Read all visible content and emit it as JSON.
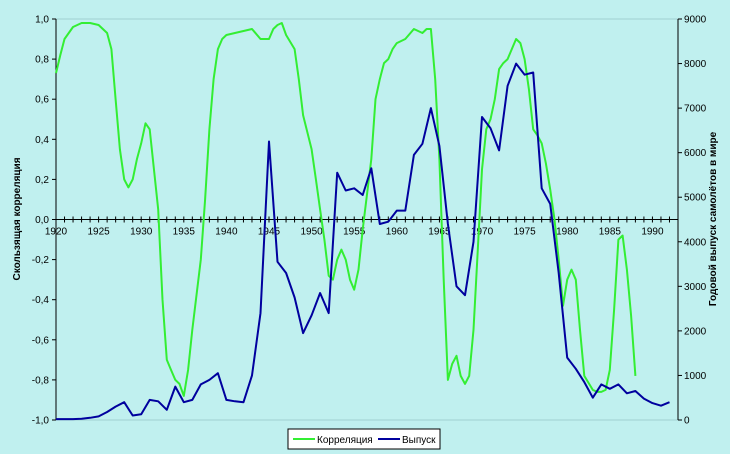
{
  "chart_data": {
    "type": "line",
    "title": "",
    "ylabel_left": "Скользящая корреляция",
    "ylabel_right": "Годовой выпуск самолётов в мире",
    "xlim": [
      1920,
      1993
    ],
    "ylim_left": [
      -1.0,
      1.0
    ],
    "ylim_right": [
      0,
      9000
    ],
    "x_ticks": [
      "1920",
      "1925",
      "1930",
      "1935",
      "1940",
      "1945",
      "1950",
      "1955",
      "1960",
      "1965",
      "1970",
      "1975",
      "1980",
      "1985",
      "1990"
    ],
    "left_ticks": [
      "1,0",
      "0,8",
      "0,6",
      "0,4",
      "0,2",
      "0,0",
      "-0,2",
      "-0,4",
      "-0,6",
      "-0,8",
      "-1,0"
    ],
    "right_ticks": [
      "9000",
      "8000",
      "7000",
      "6000",
      "5000",
      "4000",
      "3000",
      "2000",
      "1000",
      "0"
    ],
    "grid": false,
    "legend_position": "bottom",
    "colors": {
      "background": "#c0f0ef",
      "correlation": "#33ee33",
      "output": "#00009e"
    },
    "series": [
      {
        "name": "Корреляция",
        "axis": "left",
        "points": [
          [
            1920,
            0.73
          ],
          [
            1920.5,
            0.82
          ],
          [
            1921,
            0.9
          ],
          [
            1922,
            0.96
          ],
          [
            1923,
            0.98
          ],
          [
            1924,
            0.98
          ],
          [
            1925,
            0.97
          ],
          [
            1926,
            0.93
          ],
          [
            1926.5,
            0.85
          ],
          [
            1927,
            0.6
          ],
          [
            1927.5,
            0.35
          ],
          [
            1928,
            0.2
          ],
          [
            1928.5,
            0.16
          ],
          [
            1929,
            0.2
          ],
          [
            1929.5,
            0.3
          ],
          [
            1930,
            0.38
          ],
          [
            1930.5,
            0.48
          ],
          [
            1931,
            0.45
          ],
          [
            1932,
            0.05
          ],
          [
            1932.5,
            -0.4
          ],
          [
            1933,
            -0.7
          ],
          [
            1933.5,
            -0.75
          ],
          [
            1934,
            -0.8
          ],
          [
            1934.5,
            -0.82
          ],
          [
            1935,
            -0.88
          ],
          [
            1935.5,
            -0.75
          ],
          [
            1936,
            -0.55
          ],
          [
            1937,
            -0.2
          ],
          [
            1937.5,
            0.1
          ],
          [
            1938,
            0.45
          ],
          [
            1938.5,
            0.7
          ],
          [
            1939,
            0.85
          ],
          [
            1939.5,
            0.9
          ],
          [
            1940,
            0.92
          ],
          [
            1941,
            0.93
          ],
          [
            1942,
            0.94
          ],
          [
            1943,
            0.95
          ],
          [
            1944,
            0.9
          ],
          [
            1945,
            0.9
          ],
          [
            1945.5,
            0.95
          ],
          [
            1946,
            0.97
          ],
          [
            1946.5,
            0.98
          ],
          [
            1947,
            0.92
          ],
          [
            1948,
            0.85
          ],
          [
            1948.5,
            0.7
          ],
          [
            1949,
            0.52
          ],
          [
            1950,
            0.35
          ],
          [
            1950.5,
            0.2
          ],
          [
            1951,
            0.05
          ],
          [
            1951.5,
            -0.1
          ],
          [
            1952,
            -0.28
          ],
          [
            1952.5,
            -0.3
          ],
          [
            1953,
            -0.2
          ],
          [
            1953.5,
            -0.15
          ],
          [
            1954,
            -0.2
          ],
          [
            1954.5,
            -0.3
          ],
          [
            1955,
            -0.35
          ],
          [
            1955.5,
            -0.25
          ],
          [
            1956,
            -0.05
          ],
          [
            1957,
            0.3
          ],
          [
            1957.5,
            0.6
          ],
          [
            1958,
            0.7
          ],
          [
            1958.5,
            0.78
          ],
          [
            1959,
            0.8
          ],
          [
            1959.5,
            0.85
          ],
          [
            1960,
            0.88
          ],
          [
            1961,
            0.9
          ],
          [
            1962,
            0.95
          ],
          [
            1963,
            0.93
          ],
          [
            1963.5,
            0.95
          ],
          [
            1964,
            0.95
          ],
          [
            1964.5,
            0.7
          ],
          [
            1965,
            0.3
          ],
          [
            1965.5,
            -0.3
          ],
          [
            1966,
            -0.8
          ],
          [
            1966.5,
            -0.72
          ],
          [
            1967,
            -0.68
          ],
          [
            1967.5,
            -0.78
          ],
          [
            1968,
            -0.82
          ],
          [
            1968.5,
            -0.78
          ],
          [
            1969,
            -0.55
          ],
          [
            1969.5,
            -0.15
          ],
          [
            1970,
            0.25
          ],
          [
            1970.5,
            0.45
          ],
          [
            1971,
            0.5
          ],
          [
            1971.5,
            0.6
          ],
          [
            1972,
            0.75
          ],
          [
            1972.5,
            0.78
          ],
          [
            1973,
            0.8
          ],
          [
            1973.5,
            0.85
          ],
          [
            1974,
            0.9
          ],
          [
            1974.5,
            0.88
          ],
          [
            1975,
            0.8
          ],
          [
            1975.5,
            0.65
          ],
          [
            1976,
            0.45
          ],
          [
            1976.5,
            0.42
          ],
          [
            1977,
            0.38
          ],
          [
            1977.5,
            0.28
          ],
          [
            1978,
            0.15
          ],
          [
            1978.5,
            0.0
          ],
          [
            1979,
            -0.2
          ],
          [
            1979.5,
            -0.43
          ],
          [
            1980,
            -0.3
          ],
          [
            1980.5,
            -0.25
          ],
          [
            1981,
            -0.3
          ],
          [
            1981.5,
            -0.55
          ],
          [
            1982,
            -0.78
          ],
          [
            1983,
            -0.85
          ],
          [
            1983.5,
            -0.86
          ],
          [
            1984,
            -0.86
          ],
          [
            1984.5,
            -0.85
          ],
          [
            1985,
            -0.75
          ],
          [
            1985.5,
            -0.45
          ],
          [
            1986,
            -0.1
          ],
          [
            1986.5,
            -0.08
          ],
          [
            1987,
            -0.25
          ],
          [
            1987.5,
            -0.48
          ],
          [
            1988,
            -0.78
          ]
        ]
      },
      {
        "name": "Выпуск",
        "axis": "right",
        "points": [
          [
            1920,
            20
          ],
          [
            1921,
            20
          ],
          [
            1922,
            20
          ],
          [
            1923,
            30
          ],
          [
            1924,
            50
          ],
          [
            1925,
            80
          ],
          [
            1926,
            180
          ],
          [
            1927,
            300
          ],
          [
            1928,
            400
          ],
          [
            1929,
            100
          ],
          [
            1930,
            130
          ],
          [
            1931,
            450
          ],
          [
            1932,
            420
          ],
          [
            1933,
            230
          ],
          [
            1934,
            750
          ],
          [
            1935,
            400
          ],
          [
            1936,
            450
          ],
          [
            1937,
            800
          ],
          [
            1938,
            900
          ],
          [
            1939,
            1050
          ],
          [
            1940,
            450
          ],
          [
            1941,
            420
          ],
          [
            1942,
            400
          ],
          [
            1943,
            1000
          ],
          [
            1944,
            2400
          ],
          [
            1945,
            6250
          ],
          [
            1946,
            3550
          ],
          [
            1947,
            3300
          ],
          [
            1948,
            2750
          ],
          [
            1949,
            1950
          ],
          [
            1950,
            2350
          ],
          [
            1951,
            2850
          ],
          [
            1952,
            2400
          ],
          [
            1953,
            5550
          ],
          [
            1954,
            5150
          ],
          [
            1955,
            5200
          ],
          [
            1956,
            5050
          ],
          [
            1957,
            5650
          ],
          [
            1958,
            4400
          ],
          [
            1959,
            4450
          ],
          [
            1960,
            4700
          ],
          [
            1961,
            4700
          ],
          [
            1962,
            5950
          ],
          [
            1963,
            6200
          ],
          [
            1964,
            7000
          ],
          [
            1965,
            6150
          ],
          [
            1966,
            4400
          ],
          [
            1967,
            3000
          ],
          [
            1968,
            2800
          ],
          [
            1969,
            4000
          ],
          [
            1970,
            6800
          ],
          [
            1971,
            6550
          ],
          [
            1972,
            6050
          ],
          [
            1973,
            7500
          ],
          [
            1974,
            8000
          ],
          [
            1975,
            7750
          ],
          [
            1976,
            7800
          ],
          [
            1977,
            5200
          ],
          [
            1978,
            4850
          ],
          [
            1979,
            3300
          ],
          [
            1980,
            1400
          ],
          [
            1981,
            1150
          ],
          [
            1982,
            850
          ],
          [
            1983,
            500
          ],
          [
            1984,
            800
          ],
          [
            1985,
            700
          ],
          [
            1986,
            800
          ],
          [
            1987,
            600
          ],
          [
            1988,
            650
          ],
          [
            1989,
            480
          ],
          [
            1990,
            380
          ],
          [
            1991,
            320
          ],
          [
            1992,
            400
          ]
        ]
      }
    ]
  }
}
